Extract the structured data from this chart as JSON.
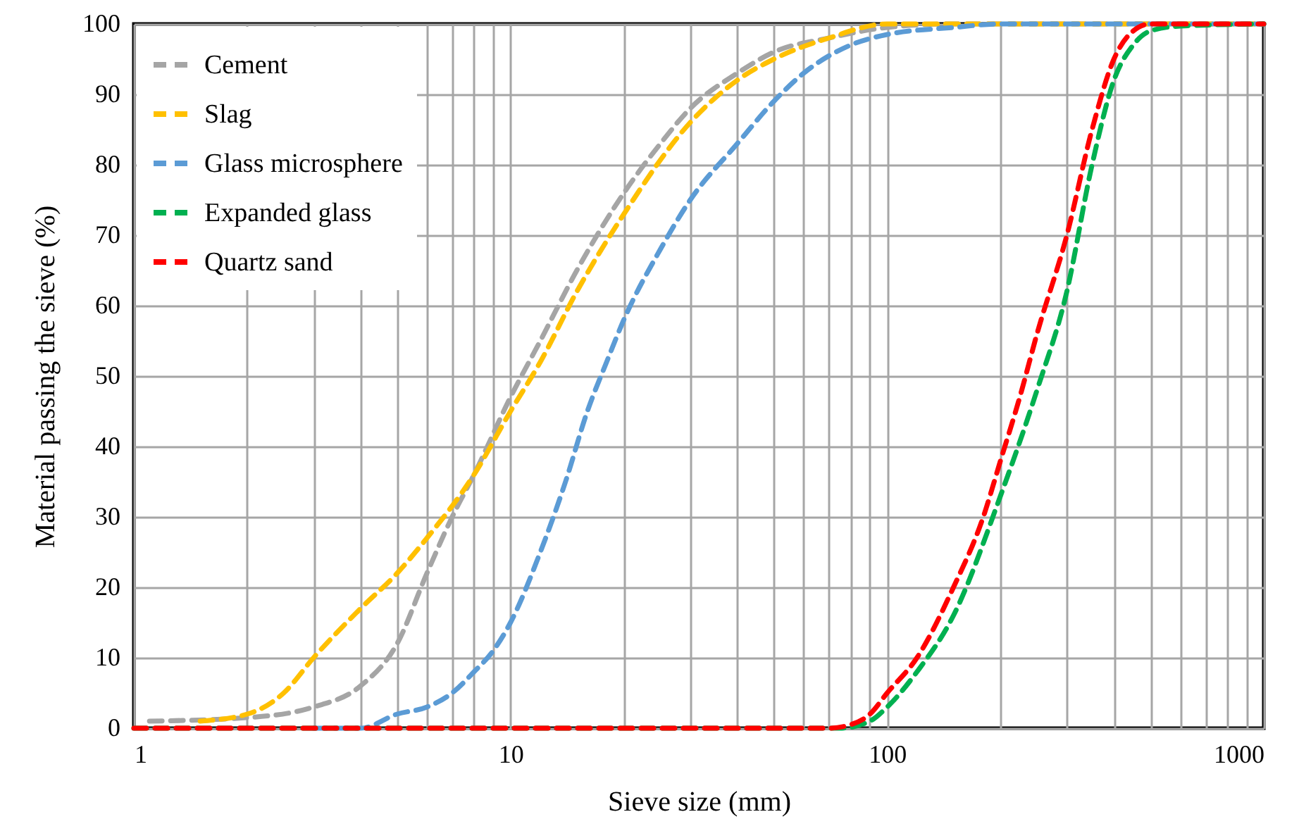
{
  "chart_data": {
    "type": "line",
    "xlabel": "Sieve size (mm)",
    "ylabel": "Material passing the sieve (%)",
    "log": "x",
    "grid": true,
    "legend": "top left",
    "line_style": "dashed",
    "marker": "none",
    "xlim": [
      1,
      1000
    ],
    "ylim": [
      0,
      100
    ],
    "xticks": [
      1,
      {
        "value": 2,
        "label": null
      },
      {
        "value": 3,
        "label": null
      },
      {
        "value": 4,
        "label": null
      },
      {
        "value": 5,
        "label": null
      },
      {
        "value": 6,
        "label": null
      },
      {
        "value": 7,
        "label": null
      },
      {
        "value": 8,
        "label": null
      },
      {
        "value": 9,
        "label": null
      },
      10,
      {
        "value": 20,
        "label": null
      },
      {
        "value": 30,
        "label": null
      },
      {
        "value": 40,
        "label": null
      },
      {
        "value": 50,
        "label": null
      },
      {
        "value": 60,
        "label": null
      },
      {
        "value": 70,
        "label": null
      },
      {
        "value": 80,
        "label": null
      },
      {
        "value": 90,
        "label": null
      },
      100,
      {
        "value": 200,
        "label": null
      },
      {
        "value": 300,
        "label": null
      },
      {
        "value": 400,
        "label": null
      },
      {
        "value": 500,
        "label": null
      },
      {
        "value": 600,
        "label": null
      },
      {
        "value": 700,
        "label": null
      },
      {
        "value": 800,
        "label": null
      },
      {
        "value": 900,
        "label": null
      },
      1000
    ],
    "yticks": [
      0,
      10,
      20,
      30,
      40,
      50,
      60,
      70,
      80,
      90,
      100
    ],
    "series": [
      {
        "name": "Cement",
        "color": "#a5a5a5",
        "x": [
          1.1,
          2,
          3,
          4,
          5,
          6,
          7,
          8,
          10,
          12,
          15,
          20,
          25,
          30,
          40,
          50,
          70,
          100,
          150,
          1000
        ],
        "values": [
          1,
          1.5,
          3,
          6,
          12,
          22,
          30,
          36,
          47,
          55,
          65,
          76,
          83,
          88,
          93,
          96,
          98,
          99.5,
          100,
          100
        ]
      },
      {
        "name": "Slag",
        "color": "#ffc000",
        "x": [
          1.5,
          2,
          2.5,
          3,
          4,
          5,
          6,
          8,
          10,
          12,
          15,
          20,
          30,
          40,
          50,
          70,
          100,
          1000
        ],
        "values": [
          1,
          2,
          5,
          10,
          17,
          22,
          27,
          36,
          45,
          52,
          62,
          73,
          86,
          92,
          95,
          98,
          100,
          100
        ]
      },
      {
        "name": "Glass microsphere",
        "color": "#5b9bd5",
        "x": [
          3,
          4,
          5,
          6,
          7,
          8,
          9,
          10,
          12,
          14,
          16,
          18,
          20,
          25,
          30,
          40,
          50,
          60,
          80,
          100,
          150,
          200,
          1000
        ],
        "values": [
          0,
          0,
          2,
          3,
          5,
          8,
          11,
          15,
          25,
          35,
          45,
          52,
          58,
          68,
          75,
          83,
          89,
          93,
          97,
          98.5,
          99.5,
          100,
          100
        ]
      },
      {
        "name": "Expanded glass",
        "color": "#00b050",
        "x": [
          1,
          75,
          90,
          100,
          120,
          150,
          200,
          250,
          300,
          350,
          400,
          450,
          500,
          600,
          1000
        ],
        "values": [
          0,
          0,
          1,
          3,
          8,
          16,
          33,
          48,
          62,
          80,
          92,
          97,
          99,
          99.7,
          100
        ]
      },
      {
        "name": "Quartz sand",
        "color": "#ff0000",
        "x": [
          1,
          70,
          80,
          90,
          100,
          120,
          150,
          180,
          200,
          225,
          250,
          300,
          350,
          400,
          450,
          500,
          1000
        ],
        "values": [
          0,
          0,
          0.5,
          2,
          5,
          10,
          20,
          30,
          38,
          47,
          56,
          70,
          85,
          95,
          99,
          100,
          100
        ]
      }
    ]
  }
}
